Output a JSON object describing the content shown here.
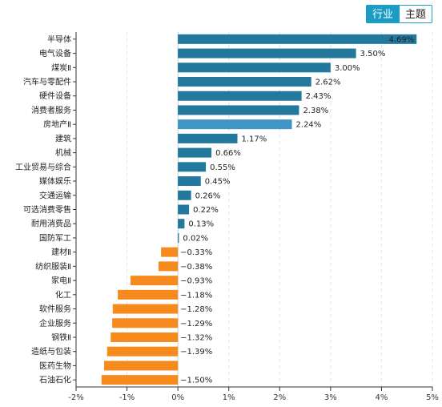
{
  "toggle": {
    "industry_label": "行业",
    "theme_label": "主题"
  },
  "colors": {
    "positive": "#23789e",
    "highlight": "#3f95c3",
    "negative": "#f78a1d",
    "grid": "#e2e2e2",
    "toggle_active": "#1a9cc4"
  },
  "chart_data": {
    "type": "bar",
    "orientation": "horizontal",
    "categories": [
      "半导体",
      "电气设备",
      "煤炭Ⅱ",
      "汽车与零配件",
      "硬件设备",
      "消费者服务",
      "房地产Ⅱ",
      "建筑",
      "机械",
      "工业贸易与综合",
      "媒体娱乐",
      "交通运输",
      "可选消费零售",
      "耐用消费品",
      "国防军工",
      "建材Ⅱ",
      "纺织服装Ⅱ",
      "家电Ⅱ",
      "化工",
      "软件服务",
      "企业服务",
      "钢铁Ⅱ",
      "造纸与包装",
      "医药生物",
      "石油石化"
    ],
    "values": [
      4.69,
      3.5,
      3.0,
      2.62,
      2.43,
      2.38,
      2.24,
      1.17,
      0.66,
      0.55,
      0.45,
      0.26,
      0.22,
      0.13,
      0.02,
      -0.33,
      -0.38,
      -0.93,
      -1.18,
      -1.28,
      -1.29,
      -1.32,
      -1.39,
      -1.45,
      -1.5
    ],
    "value_labels": [
      "4.69%",
      "3.50%",
      "3.00%",
      "2.62%",
      "2.43%",
      "2.38%",
      "2.24%",
      "1.17%",
      "0.66%",
      "0.55%",
      "0.45%",
      "0.26%",
      "0.22%",
      "0.13%",
      "0.02%",
      "−0.33%",
      "−0.38%",
      "−0.93%",
      "−1.18%",
      "−1.28%",
      "−1.29%",
      "−1.32%",
      "−1.39%",
      "",
      "−1.50%"
    ],
    "highlight_category": "房地产Ⅱ",
    "xlim": [
      -2,
      5
    ],
    "x_ticks": [
      -2,
      -1,
      0,
      1,
      2,
      3,
      4,
      5
    ],
    "x_tick_labels": [
      "-2%",
      "-1%",
      "0%",
      "1%",
      "2%",
      "3%",
      "4%",
      "5%"
    ],
    "grid": "vertical-dashed"
  }
}
